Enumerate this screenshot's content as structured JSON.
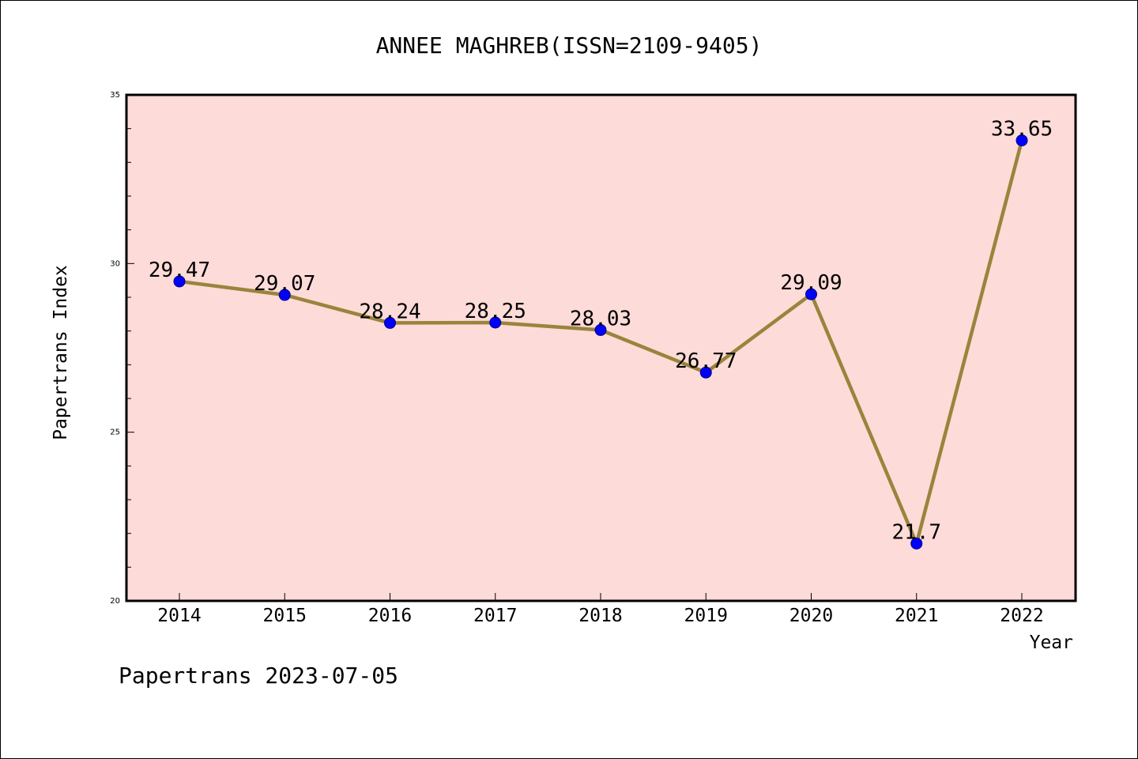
{
  "chart_data": {
    "type": "line",
    "title": "ANNEE MAGHREB(ISSN=2109-9405)",
    "xlabel": "Year",
    "ylabel": "Papertrans Index",
    "categories": [
      "2014",
      "2015",
      "2016",
      "2017",
      "2018",
      "2019",
      "2020",
      "2021",
      "2022"
    ],
    "series": [
      {
        "values": [
          29.47,
          29.07,
          28.24,
          28.25,
          28.03,
          26.77,
          29.09,
          21.7,
          33.65
        ],
        "labels": [
          "29.47",
          "29.07",
          "28.24",
          "28.25",
          "28.03",
          "26.77",
          "29.09",
          "21.7",
          "33.65"
        ]
      }
    ],
    "ylim": [
      20,
      35
    ],
    "yticks": [
      20,
      25,
      30,
      35
    ],
    "ytick_labels": [
      "20",
      "25",
      "30",
      "35"
    ],
    "grid": false,
    "colors": {
      "plot_background": "#fddbd8",
      "line": "#9a843c",
      "marker": "#0000ff",
      "marker_edge": "#000080"
    }
  },
  "footer": "Papertrans 2023-07-05"
}
